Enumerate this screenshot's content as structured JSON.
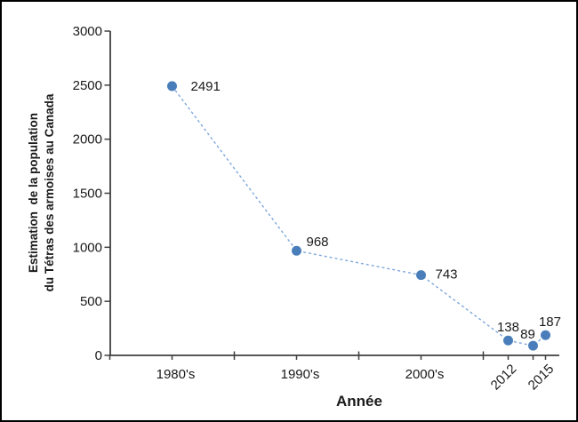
{
  "chart_data": {
    "type": "line",
    "title": "",
    "xlabel": "Année",
    "ylabel_line1": "Estimation  de la population",
    "ylabel_line2": "du Tétras des armoises au Canada",
    "legend": "none",
    "grid": "off",
    "line_style": "dashed",
    "colors": {
      "marker": "#4A7EBB",
      "line": "#7FA7DC",
      "axis": "#3f3f3f",
      "text": "#1a1a1a"
    },
    "x_axis": {
      "range": [
        1980,
        2016
      ],
      "major_ticks": [
        1990,
        2000,
        2010
      ],
      "minor_ticks": [
        1980,
        1985,
        1995,
        2005,
        2012,
        2014,
        2015
      ],
      "labels": [
        {
          "year": 1985,
          "text": "1980's",
          "rotated": false
        },
        {
          "year": 1995,
          "text": "1990's",
          "rotated": false
        },
        {
          "year": 2005,
          "text": "2000's",
          "rotated": false
        },
        {
          "year": 2012,
          "text": "2012",
          "rotated": true
        },
        {
          "year": 2015,
          "text": "2015",
          "rotated": true
        }
      ]
    },
    "y_axis": {
      "range": [
        0,
        3000
      ],
      "tick_interval": 500,
      "tick_labels": [
        "0",
        "500",
        "1000",
        "1500",
        "2000",
        "2500",
        "3000"
      ]
    },
    "series": [
      {
        "name": "Estimation de la population du Tétras des armoises au Canada",
        "points": [
          {
            "x": 1985,
            "category": "1980's",
            "value": 2491,
            "label": "2491",
            "label_anchor": "start",
            "label_dx": 21,
            "label_dy": 5
          },
          {
            "x": 1995,
            "category": "1990's",
            "value": 968,
            "label": "968",
            "label_anchor": "start",
            "label_dx": 11,
            "label_dy": -5
          },
          {
            "x": 2005,
            "category": "2000's",
            "value": 743,
            "label": "743",
            "label_anchor": "start",
            "label_dx": 16,
            "label_dy": 4
          },
          {
            "x": 2012,
            "category": "2012",
            "value": 138,
            "label": "138",
            "label_anchor": "middle",
            "label_dx": 0,
            "label_dy": -10
          },
          {
            "x": 2014,
            "category": "2014",
            "value": 89,
            "label": "89",
            "label_anchor": "middle",
            "label_dx": -6,
            "label_dy": -8
          },
          {
            "x": 2015,
            "category": "2015",
            "value": 187,
            "label": "187",
            "label_anchor": "middle",
            "label_dx": 5,
            "label_dy": -10
          }
        ]
      }
    ]
  }
}
